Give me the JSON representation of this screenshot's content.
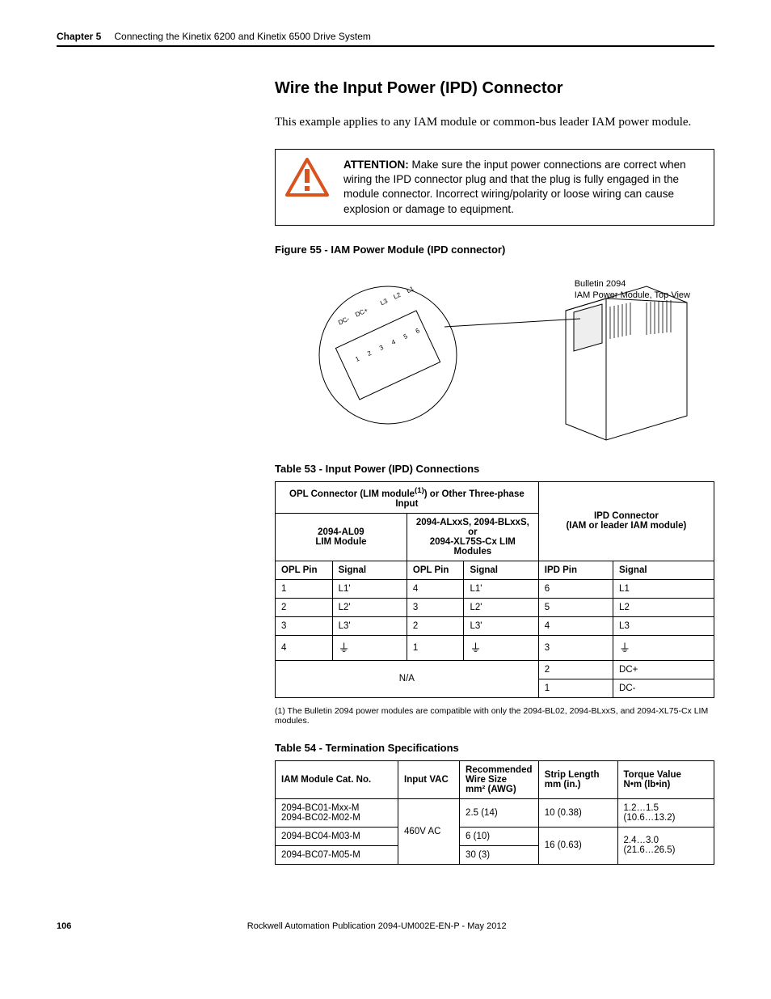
{
  "header": {
    "chapter_label": "Chapter 5",
    "chapter_title": "Connecting the Kinetix 6200 and Kinetix 6500 Drive System"
  },
  "section": {
    "heading": "Wire the Input Power (IPD) Connector",
    "intro": "This example applies to any IAM module or common-bus leader IAM power module."
  },
  "attention": {
    "label": "ATTENTION:",
    "text": " Make sure the input power connections are correct when wiring the IPD connector plug and that the plug is fully engaged in the module connector. Incorrect wiring/polarity or loose wiring can cause explosion or damage to equipment."
  },
  "figure55": {
    "caption": "Figure 55 - IAM Power Module (IPD connector)",
    "label_line1": "Bulletin 2094",
    "label_line2": "IAM Power Module, Top View",
    "pin_labels": [
      "DC-",
      "DC+",
      "",
      "L3",
      "L2",
      "L1"
    ],
    "pin_numbers": [
      "1",
      "2",
      "3",
      "4",
      "5",
      "6"
    ]
  },
  "table53": {
    "caption": "Table 53 - Input Power (IPD) Connections",
    "superhead_left": "OPL Connector (LIM module",
    "superhead_left_sup": "(1)",
    "superhead_left_tail": ") or Other Three-phase Input",
    "superhead_right_l1": "IPD Connector",
    "superhead_right_l2": "(IAM or leader IAM module)",
    "subhead_left_l1": "2094-AL09",
    "subhead_left_l2": "LIM Module",
    "subhead_mid_l1": "2094-ALxxS, 2094-BLxxS, or",
    "subhead_mid_l2": "2094-XL75S-Cx LIM Modules",
    "col_opl_pin": "OPL Pin",
    "col_signal": "Signal",
    "col_ipd_pin": "IPD Pin",
    "rows": [
      {
        "opl1_pin": "1",
        "opl1_sig": "L1'",
        "opl2_pin": "4",
        "opl2_sig": "L1'",
        "ipd_pin": "6",
        "ipd_sig": "L1"
      },
      {
        "opl1_pin": "2",
        "opl1_sig": "L2'",
        "opl2_pin": "3",
        "opl2_sig": "L2'",
        "ipd_pin": "5",
        "ipd_sig": "L2"
      },
      {
        "opl1_pin": "3",
        "opl1_sig": "L3'",
        "opl2_pin": "2",
        "opl2_sig": "L3'",
        "ipd_pin": "4",
        "ipd_sig": "L3"
      },
      {
        "opl1_pin": "4",
        "opl1_sig": "⏚",
        "opl2_pin": "1",
        "opl2_sig": "⏚",
        "ipd_pin": "3",
        "ipd_sig": "⏚"
      }
    ],
    "na_label": "N/A",
    "na_rows": [
      {
        "ipd_pin": "2",
        "ipd_sig": "DC+"
      },
      {
        "ipd_pin": "1",
        "ipd_sig": "DC-"
      }
    ],
    "footnote": "(1)   The Bulletin 2094 power modules are compatible with only the 2094-BL02, 2094-BLxxS, and 2094-XL75-Cx LIM modules."
  },
  "table54": {
    "caption": "Table 54 - Termination Specifications",
    "cols": {
      "cat": "IAM Module Cat. No.",
      "vac": "Input VAC",
      "wire_l1": "Recommended",
      "wire_l2": "Wire Size",
      "wire_l3": "mm² (AWG)",
      "strip_l1": "Strip Length",
      "strip_l2": "mm (in.)",
      "torque_l1": "Torque Value",
      "torque_l2": "N•m (lb•in)"
    },
    "rows": [
      {
        "cat_l1": "2094-BC01-Mxx-M",
        "cat_l2": "2094-BC02-M02-M",
        "vac": "460V AC",
        "wire": "2.5 (14)",
        "strip": "10 (0.38)",
        "torque_l1": "1.2…1.5",
        "torque_l2": "(10.6…13.2)"
      },
      {
        "cat": "2094-BC04-M03-M",
        "wire": "6 (10)",
        "strip": "16 (0.63)",
        "torque_l1": "2.4…3.0",
        "torque_l2": "(21.6…26.5)"
      },
      {
        "cat": "2094-BC07-M05-M",
        "wire": "30 (3)"
      }
    ]
  },
  "footer": {
    "page": "106",
    "pub": "Rockwell Automation Publication 2094-UM002E-EN-P - May 2012"
  }
}
